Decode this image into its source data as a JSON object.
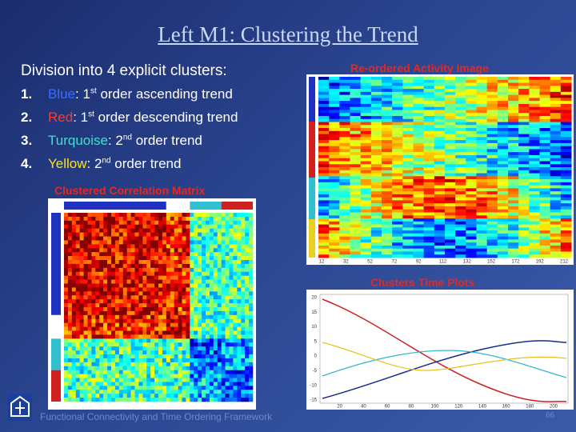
{
  "title": "Left M1: Clustering the Trend",
  "heading": "Division into 4 explicit clusters:",
  "list": [
    {
      "number": "1.",
      "name": "Blue",
      "before_sup": ": 1",
      "sup": "st",
      "after_sup": " order ascending trend"
    },
    {
      "number": "2.",
      "name": "Red",
      "before_sup": ": 1",
      "sup": "st",
      "after_sup": " order descending trend"
    },
    {
      "number": "3.",
      "name": "Turquoise",
      "before_sup": ": 2",
      "sup": "nd",
      "after_sup": " order trend"
    },
    {
      "number": "4.",
      "name": "Yellow",
      "before_sup": ": 2",
      "sup": "nd",
      "after_sup": " order trend"
    }
  ],
  "activity_image": {
    "label": "Re-ordered Activity Image",
    "xticks": [
      12,
      32,
      52,
      72,
      92,
      112,
      132,
      152,
      172,
      192,
      212
    ]
  },
  "correlation_matrix": {
    "label": "Clustered Correlation Matrix"
  },
  "time_plots": {
    "label": "Clusters Time Plots",
    "yticks": [
      20,
      15,
      10,
      5,
      0,
      -5,
      -10,
      -15
    ],
    "xticks": [
      20,
      40,
      60,
      80,
      100,
      120,
      140,
      160,
      180,
      200
    ]
  },
  "footer": {
    "text": "Functional Connectivity and Time Ordering Framework",
    "page": "66"
  }
}
